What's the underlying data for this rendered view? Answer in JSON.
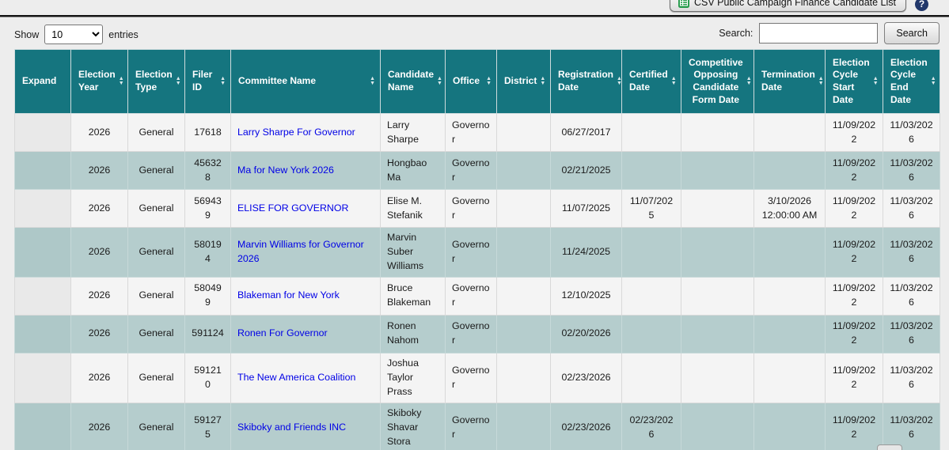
{
  "toolbar": {
    "csv_button_label": "CSV Public Campaign Finance Candidate List",
    "help_label": "?"
  },
  "controls": {
    "show_label": "Show",
    "entries_select_value": "10",
    "entries_label": "entries",
    "search_label": "Search:",
    "search_input_value": "",
    "search_button_label": "Search"
  },
  "colors": {
    "header_bg": "#15757f",
    "row_even_bg": "#b5cdcd",
    "row_odd_bg": "#f4f4f4",
    "link_blue": "#0000e6",
    "csv_icon_green": "#259b4b",
    "help_icon_navy": "#22386b"
  },
  "table": {
    "columns": [
      {
        "label": "Expand",
        "sortable": false
      },
      {
        "label": "Election Year",
        "sortable": true
      },
      {
        "label": "Election Type",
        "sortable": true
      },
      {
        "label": "Filer ID",
        "sortable": true
      },
      {
        "label": "Committee Name",
        "sortable": true
      },
      {
        "label": "Candidate Name",
        "sortable": true
      },
      {
        "label": "Office",
        "sortable": true
      },
      {
        "label": "District",
        "sortable": true
      },
      {
        "label": "Registration Date",
        "sortable": true
      },
      {
        "label": "Certified Date",
        "sortable": true
      },
      {
        "label": "Competitive Opposing Candidate Form Date",
        "sortable": true
      },
      {
        "label": "Termination Date",
        "sortable": true
      },
      {
        "label": "Election Cycle Start Date",
        "sortable": true
      },
      {
        "label": "Election Cycle End Date",
        "sortable": true
      }
    ],
    "rows": [
      {
        "election_year": "2026",
        "election_type": "General",
        "filer_id": "17618",
        "committee_name": "Larry Sharpe For Governor",
        "candidate_name": "Larry Sharpe",
        "office": "Governor",
        "district": "",
        "registration_date": "06/27/2017",
        "certified_date": "",
        "competitive_form_date": "",
        "termination_date": "",
        "cycle_start": "11/09/2022",
        "cycle_end": "11/03/2026"
      },
      {
        "election_year": "2026",
        "election_type": "General",
        "filer_id": "456328",
        "committee_name": "Ma for New York 2026",
        "candidate_name": "Hongbao Ma",
        "office": "Governor",
        "district": "",
        "registration_date": "02/21/2025",
        "certified_date": "",
        "competitive_form_date": "",
        "termination_date": "",
        "cycle_start": "11/09/2022",
        "cycle_end": "11/03/2026"
      },
      {
        "election_year": "2026",
        "election_type": "General",
        "filer_id": "569439",
        "committee_name": "ELISE FOR GOVERNOR",
        "candidate_name": "Elise M. Stefanik",
        "office": "Governor",
        "district": "",
        "registration_date": "11/07/2025",
        "certified_date": "11/07/2025",
        "competitive_form_date": "",
        "termination_date": "3/10/2026 12:00:00 AM",
        "cycle_start": "11/09/2022",
        "cycle_end": "11/03/2026"
      },
      {
        "election_year": "2026",
        "election_type": "General",
        "filer_id": "580194",
        "committee_name": "Marvin Williams for Governor 2026",
        "candidate_name": "Marvin Suber Williams",
        "office": "Governor",
        "district": "",
        "registration_date": "11/24/2025",
        "certified_date": "",
        "competitive_form_date": "",
        "termination_date": "",
        "cycle_start": "11/09/2022",
        "cycle_end": "11/03/2026"
      },
      {
        "election_year": "2026",
        "election_type": "General",
        "filer_id": "580499",
        "committee_name": "Blakeman for New York",
        "candidate_name": "Bruce Blakeman",
        "office": "Governor",
        "district": "",
        "registration_date": "12/10/2025",
        "certified_date": "",
        "competitive_form_date": "",
        "termination_date": "",
        "cycle_start": "11/09/2022",
        "cycle_end": "11/03/2026"
      },
      {
        "election_year": "2026",
        "election_type": "General",
        "filer_id": "591124",
        "committee_name": "Ronen For Governor",
        "candidate_name": "Ronen Nahom",
        "office": "Governor",
        "district": "",
        "registration_date": "02/20/2026",
        "certified_date": "",
        "competitive_form_date": "",
        "termination_date": "",
        "cycle_start": "11/09/2022",
        "cycle_end": "11/03/2026"
      },
      {
        "election_year": "2026",
        "election_type": "General",
        "filer_id": "591210",
        "committee_name": "The New America Coalition",
        "candidate_name": "Joshua Taylor Prass",
        "office": "Governor",
        "district": "",
        "registration_date": "02/23/2026",
        "certified_date": "",
        "competitive_form_date": "",
        "termination_date": "",
        "cycle_start": "11/09/2022",
        "cycle_end": "11/03/2026"
      },
      {
        "election_year": "2026",
        "election_type": "General",
        "filer_id": "591275",
        "committee_name": "Skiboky and Friends INC",
        "candidate_name": "Skiboky Shavar Stora",
        "office": "Governor",
        "district": "",
        "registration_date": "02/23/2026",
        "certified_date": "02/23/2026",
        "competitive_form_date": "",
        "termination_date": "",
        "cycle_start": "11/09/2022",
        "cycle_end": "11/03/2026"
      }
    ]
  }
}
